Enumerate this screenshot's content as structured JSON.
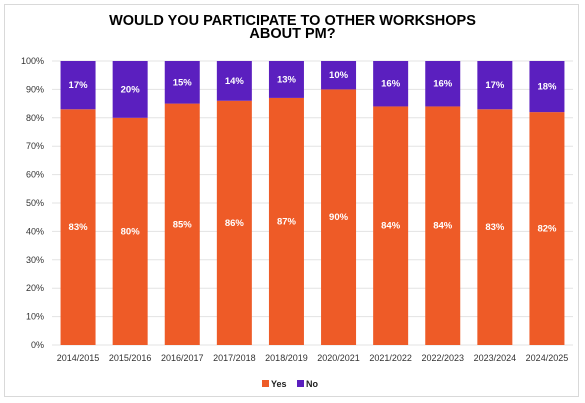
{
  "chart_data": {
    "type": "bar",
    "stacked": true,
    "title_lines": [
      "WOULD YOU PARTICIPATE TO OTHER WORKSHOPS",
      "ABOUT PM?"
    ],
    "categories": [
      "2014/2015",
      "2015/2016",
      "2016/2017",
      "2017/2018",
      "2018/2019",
      "2020/2021",
      "2021/2022",
      "2022/2023",
      "2023/2024",
      "2024/2025"
    ],
    "series": [
      {
        "name": "Yes",
        "color": "#ee5b27",
        "values": [
          83,
          80,
          85,
          86,
          87,
          90,
          84,
          84,
          83,
          82
        ]
      },
      {
        "name": "No",
        "color": "#5b1fbf",
        "values": [
          17,
          20,
          15,
          14,
          13,
          10,
          16,
          16,
          17,
          18
        ]
      }
    ],
    "ylim": [
      0,
      100
    ],
    "yticks": [
      "0%",
      "10%",
      "20%",
      "30%",
      "40%",
      "50%",
      "60%",
      "70%",
      "80%",
      "90%",
      "100%"
    ],
    "data_label_suffix": "%",
    "grid": true,
    "legend_position": "bottom"
  }
}
